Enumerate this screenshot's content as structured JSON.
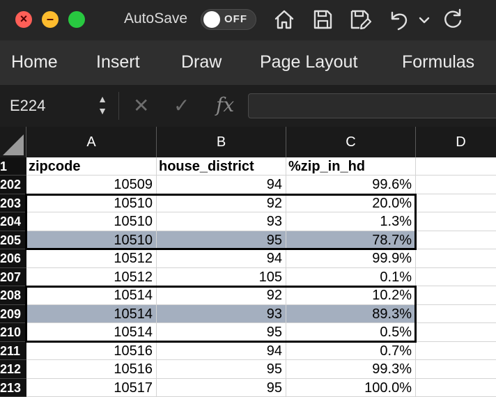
{
  "window": {
    "autosave_label": "AutoSave",
    "autosave_state": "OFF",
    "toolbar_icons": [
      "home-icon",
      "save-icon",
      "save-as-icon",
      "undo-icon",
      "chevron-down-icon",
      "redo-icon"
    ]
  },
  "ribbon": {
    "tabs": [
      "Home",
      "Insert",
      "Draw",
      "Page Layout",
      "Formulas"
    ]
  },
  "formula_bar": {
    "name_box": "E224",
    "cancel_symbol": "✕",
    "enter_symbol": "✓",
    "fx_symbol": "fx",
    "formula": ""
  },
  "sheet": {
    "columns": [
      "A",
      "B",
      "C",
      "D"
    ],
    "header_row": {
      "number": "1",
      "cells": [
        "zipcode",
        "house_district",
        "%zip_in_hd",
        ""
      ]
    },
    "rows": [
      {
        "number": "202",
        "cells": [
          "10509",
          "94",
          "99.6%"
        ],
        "highlight": false
      },
      {
        "number": "203",
        "cells": [
          "10510",
          "92",
          "20.0%"
        ],
        "highlight": false
      },
      {
        "number": "204",
        "cells": [
          "10510",
          "93",
          "1.3%"
        ],
        "highlight": false
      },
      {
        "number": "205",
        "cells": [
          "10510",
          "95",
          "78.7%"
        ],
        "highlight": true
      },
      {
        "number": "206",
        "cells": [
          "10512",
          "94",
          "99.9%"
        ],
        "highlight": false
      },
      {
        "number": "207",
        "cells": [
          "10512",
          "105",
          "0.1%"
        ],
        "highlight": false
      },
      {
        "number": "208",
        "cells": [
          "10514",
          "92",
          "10.2%"
        ],
        "highlight": false
      },
      {
        "number": "209",
        "cells": [
          "10514",
          "93",
          "89.3%"
        ],
        "highlight": true
      },
      {
        "number": "210",
        "cells": [
          "10514",
          "95",
          "0.5%"
        ],
        "highlight": false
      },
      {
        "number": "211",
        "cells": [
          "10516",
          "94",
          "0.7%"
        ],
        "highlight": false
      },
      {
        "number": "212",
        "cells": [
          "10516",
          "95",
          "99.3%"
        ],
        "highlight": false
      },
      {
        "number": "213",
        "cells": [
          "10517",
          "95",
          "100.0%"
        ],
        "highlight": false
      }
    ],
    "highlight_color": "#a4afbf",
    "outlined_groups": [
      [
        "203",
        "205"
      ],
      [
        "208",
        "210"
      ]
    ]
  }
}
